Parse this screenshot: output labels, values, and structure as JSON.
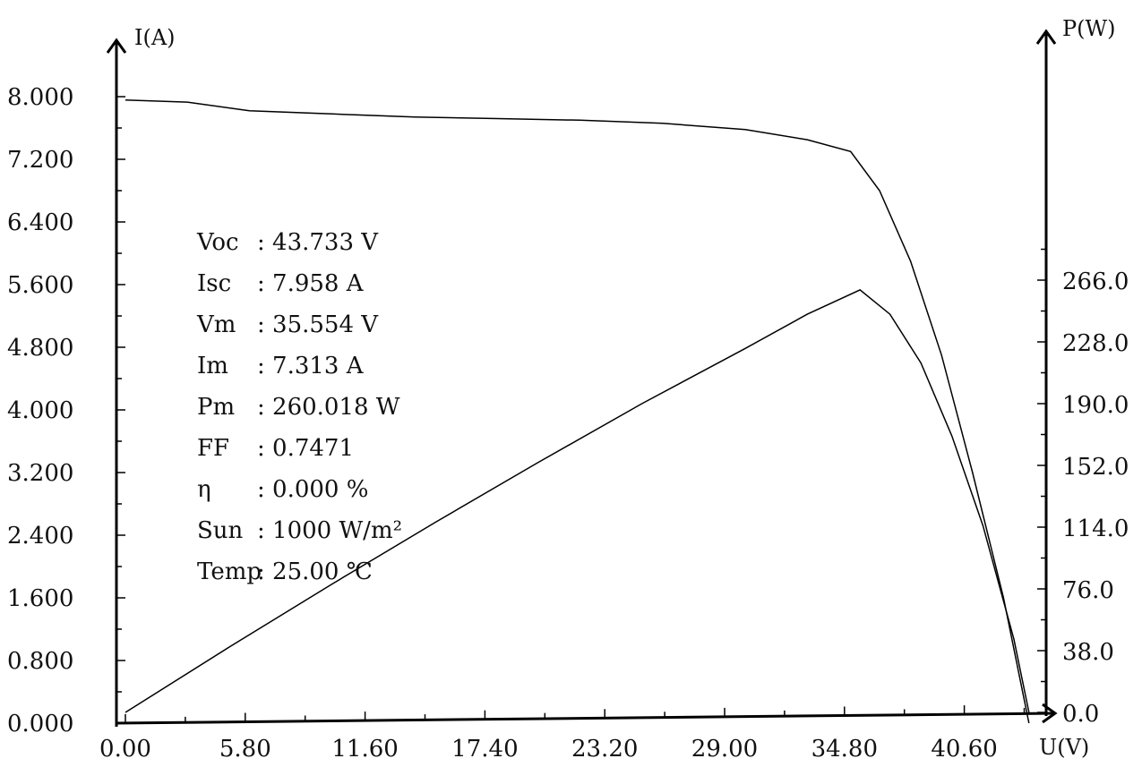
{
  "chart_data": {
    "type": "line",
    "title": "",
    "xlabel": "U(V)",
    "ylabel": "I(A)",
    "y2label": "P(W)",
    "xlim": [
      0,
      46.4
    ],
    "ylim": [
      0,
      8.8
    ],
    "y2lim": [
      0,
      285
    ],
    "x_ticks": [
      "0.00",
      "5.80",
      "11.60",
      "17.40",
      "23.20",
      "29.00",
      "34.80",
      "40.60"
    ],
    "y_ticks": [
      "0.000",
      "0.800",
      "1.600",
      "2.400",
      "3.200",
      "4.000",
      "4.800",
      "5.600",
      "6.400",
      "7.200",
      "8.000"
    ],
    "y2_ticks": [
      "0.0",
      "38.0",
      "76.0",
      "114.0",
      "152.0",
      "190.0",
      "228.0",
      "266.0"
    ],
    "grid": false,
    "series": [
      {
        "axis": "left",
        "x": [
          0,
          3,
          6,
          10,
          14,
          18,
          22,
          26,
          30,
          33,
          35.1,
          36.5,
          38,
          39.5,
          41,
          42.5,
          43.73
        ],
        "y": [
          7.958,
          7.93,
          7.82,
          7.78,
          7.74,
          7.72,
          7.7,
          7.66,
          7.58,
          7.45,
          7.3,
          6.8,
          5.9,
          4.7,
          3.2,
          1.6,
          0.0
        ]
      },
      {
        "axis": "right",
        "x": [
          0,
          5,
          10,
          15,
          20,
          25,
          30,
          33,
          35.554,
          37,
          38.5,
          40,
          41.5,
          43,
          43.73
        ],
        "y": [
          0,
          40,
          79,
          117,
          154,
          190,
          224,
          245,
          260.0,
          245,
          215,
          170,
          115,
          45,
          0
        ]
      }
    ]
  },
  "params": [
    {
      "label": "Voc",
      "value": ": 43.733 V"
    },
    {
      "label": "Isc",
      "value": ": 7.958 A"
    },
    {
      "label": "Vm",
      "value": ": 35.554 V"
    },
    {
      "label": "Im",
      "value": ": 7.313 A"
    },
    {
      "label": "Pm",
      "value": ": 260.018 W"
    },
    {
      "label": "FF",
      "value": ": 0.7471"
    },
    {
      "label": "η",
      "value": ": 0.000 %"
    },
    {
      "label": "Sun",
      "value": ": 1000 W/m²"
    },
    {
      "label": "Temp",
      "value": ": 25.00 ℃"
    }
  ]
}
